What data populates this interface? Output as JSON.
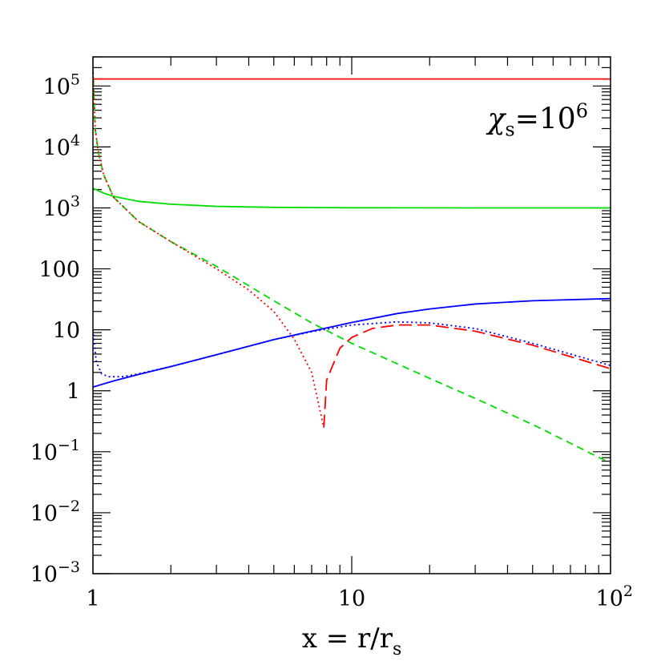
{
  "chart_data": {
    "type": "line",
    "xscale": "log",
    "yscale": "log",
    "xlim": [
      1,
      100
    ],
    "ylim": [
      0.001,
      300000
    ],
    "xlabel": "x = r/r",
    "xlabel_sub": "s",
    "ylabel": "",
    "grid": false,
    "x_ticks": [
      {
        "value": 1,
        "label": "1"
      },
      {
        "value": 10,
        "label": "10"
      },
      {
        "value": 100,
        "label": "10",
        "sup": "2"
      }
    ],
    "y_ticks": [
      {
        "value": 100000,
        "label": "10",
        "sup": "5"
      },
      {
        "value": 10000,
        "label": "10",
        "sup": "4"
      },
      {
        "value": 1000,
        "label": "10",
        "sup": "3"
      },
      {
        "value": 100,
        "label": "100"
      },
      {
        "value": 10,
        "label": "10"
      },
      {
        "value": 1,
        "label": "1"
      },
      {
        "value": 0.1,
        "label": "10",
        "sup": "−1"
      },
      {
        "value": 0.01,
        "label": "10",
        "sup": "−2"
      },
      {
        "value": 0.001,
        "label": "10",
        "sup": "−3"
      }
    ],
    "annotation": {
      "symbol": "χ",
      "sub": "s",
      "eq": "=",
      "value": "10",
      "sup": "6",
      "position": "top-right"
    },
    "series": [
      {
        "color": "#ff0000",
        "dash": "solid",
        "points": [
          [
            1,
            130000
          ],
          [
            100,
            130000
          ]
        ]
      },
      {
        "color": "#00dd00",
        "dash": "solid",
        "points": [
          [
            1,
            2100
          ],
          [
            1.1,
            1750
          ],
          [
            1.2,
            1550
          ],
          [
            1.5,
            1280
          ],
          [
            2,
            1150
          ],
          [
            3,
            1060
          ],
          [
            5,
            1020
          ],
          [
            10,
            1005
          ],
          [
            30,
            1000
          ],
          [
            100,
            1000
          ]
        ]
      },
      {
        "color": "#0000ff",
        "dash": "solid",
        "points": [
          [
            1,
            1.15
          ],
          [
            1.2,
            1.45
          ],
          [
            1.5,
            1.85
          ],
          [
            2,
            2.5
          ],
          [
            3,
            3.9
          ],
          [
            5,
            6.9
          ],
          [
            7,
            9.5
          ],
          [
            10,
            13.2
          ],
          [
            15,
            18.5
          ],
          [
            20,
            22
          ],
          [
            30,
            26.5
          ],
          [
            50,
            30
          ],
          [
            100,
            32.5
          ]
        ]
      },
      {
        "color": "#00dd00",
        "dash": "dashed",
        "points": [
          [
            1,
            200000
          ],
          [
            1.02,
            20000
          ],
          [
            1.05,
            8000
          ],
          [
            1.1,
            3500
          ],
          [
            1.2,
            1500
          ],
          [
            1.5,
            600
          ],
          [
            2,
            280
          ],
          [
            3,
            110
          ],
          [
            5,
            30
          ],
          [
            7,
            13
          ],
          [
            10,
            6
          ],
          [
            20,
            1.6
          ],
          [
            30,
            0.75
          ],
          [
            50,
            0.28
          ],
          [
            100,
            0.065
          ]
        ]
      },
      {
        "color": "#ff0000",
        "dash": "dotted",
        "points": [
          [
            1,
            200000
          ],
          [
            1.02,
            20000
          ],
          [
            1.05,
            8000
          ],
          [
            1.1,
            3500
          ],
          [
            1.2,
            1500
          ],
          [
            1.5,
            600
          ],
          [
            2,
            280
          ],
          [
            3,
            100
          ],
          [
            4,
            45
          ],
          [
            5,
            20
          ],
          [
            6,
            7
          ],
          [
            7,
            2
          ],
          [
            7.8,
            0.25
          ]
        ]
      },
      {
        "color": "#ff0000",
        "dash": "longdash",
        "points": [
          [
            7.8,
            0.25
          ],
          [
            8,
            1.5
          ],
          [
            9,
            5
          ],
          [
            10,
            7.5
          ],
          [
            12,
            10.5
          ],
          [
            15,
            12
          ],
          [
            20,
            12
          ],
          [
            30,
            9.5
          ],
          [
            50,
            5.6
          ],
          [
            100,
            2.3
          ]
        ]
      },
      {
        "color": "#0000ff",
        "dash": "dotted",
        "points": [
          [
            1,
            10
          ],
          [
            1.03,
            3
          ],
          [
            1.08,
            1.9
          ],
          [
            1.15,
            1.7
          ],
          [
            1.3,
            1.7
          ],
          [
            1.5,
            1.9
          ],
          [
            2,
            2.5
          ],
          [
            3,
            3.9
          ],
          [
            5,
            6.9
          ],
          [
            7,
            9.3
          ],
          [
            10,
            12
          ],
          [
            15,
            13.5
          ],
          [
            20,
            13
          ],
          [
            30,
            10.5
          ],
          [
            50,
            6
          ],
          [
            100,
            2.6
          ]
        ]
      }
    ]
  }
}
